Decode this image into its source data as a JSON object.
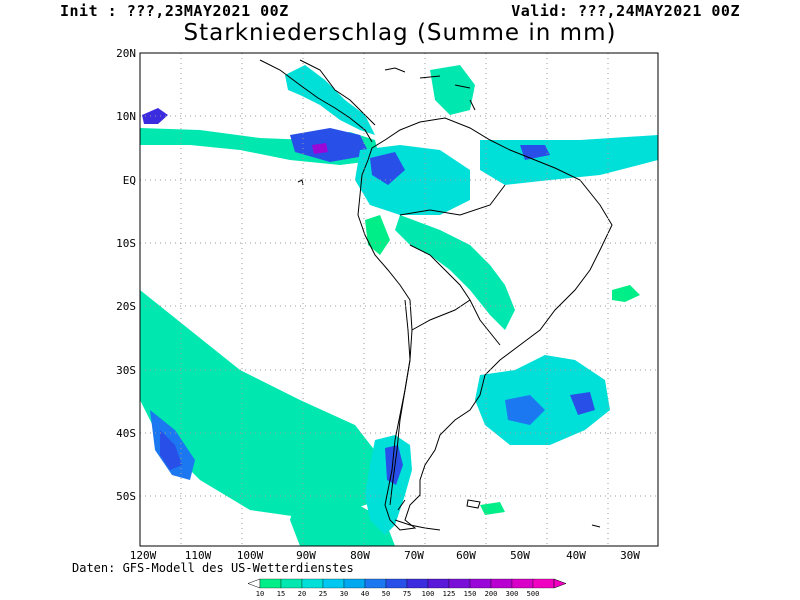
{
  "header": {
    "init_label": "Init : ???,23MAY2021 00Z",
    "valid_label": "Valid: ???,24MAY2021 00Z",
    "title": "Starkniederschlag (Summe in mm)"
  },
  "map": {
    "lat_ticks": [
      "20N",
      "10N",
      "EQ",
      "10S",
      "20S",
      "30S",
      "40S",
      "50S"
    ],
    "lon_ticks": [
      "120W",
      "110W",
      "100W",
      "90W",
      "80W",
      "70W",
      "60W",
      "50W",
      "40W",
      "30W"
    ],
    "ocean_color": "#ffffff",
    "coastline_color": "#000000",
    "grid_color": "#9a9a9a"
  },
  "legend": {
    "levels": [
      "10",
      "15",
      "20",
      "25",
      "30",
      "40",
      "50",
      "75",
      "100",
      "125",
      "150",
      "200",
      "300",
      "500"
    ],
    "colors": [
      "#00ee88",
      "#00e8b0",
      "#00e0d8",
      "#00c8f0",
      "#00a8f0",
      "#1c78f0",
      "#2850e8",
      "#3c2ce0",
      "#5a18d8",
      "#7a10d8",
      "#9a08d8",
      "#b800d0",
      "#d800c8",
      "#f000c0"
    ]
  },
  "source_note": "Daten: GFS-Modell des US-Wetterdienstes"
}
